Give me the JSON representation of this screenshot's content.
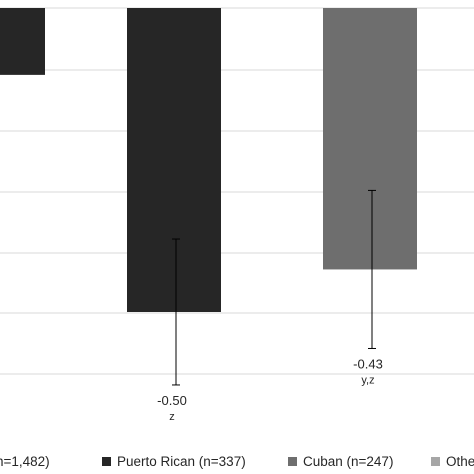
{
  "chart_data": {
    "type": "bar",
    "categories": [
      "n=1,482",
      "Puerto Rican (n=337)",
      "Cuban (n=247)",
      "Othe"
    ],
    "series": [
      {
        "name": "",
        "values": [
          -0.11,
          -0.5,
          -0.43,
          null
        ],
        "error_low": [
          null,
          -0.62,
          -0.56,
          null
        ],
        "error_high": [
          null,
          -0.38,
          -0.3,
          null
        ],
        "colors": [
          "#262626",
          "#262626",
          "#6e6e6e",
          "#a6a6a6"
        ]
      }
    ],
    "data_labels": [
      {
        "index": 1,
        "value": "-0.50",
        "annotation": "z"
      },
      {
        "index": 2,
        "value": "-0.43",
        "annotation": "y,z"
      }
    ],
    "ylim": [
      -0.62,
      0.0
    ],
    "grid": true,
    "legend": {
      "placement": "bottom",
      "items": [
        {
          "label": "n=1,482)",
          "color": "#262626"
        },
        {
          "label": "Puerto Rican (n=337)",
          "color": "#262626"
        },
        {
          "label": "Cuban (n=247)",
          "color": "#6e6e6e"
        },
        {
          "label": "Othe",
          "color": "#a6a6a6"
        }
      ]
    },
    "title": "",
    "xlabel": "",
    "ylabel": ""
  }
}
